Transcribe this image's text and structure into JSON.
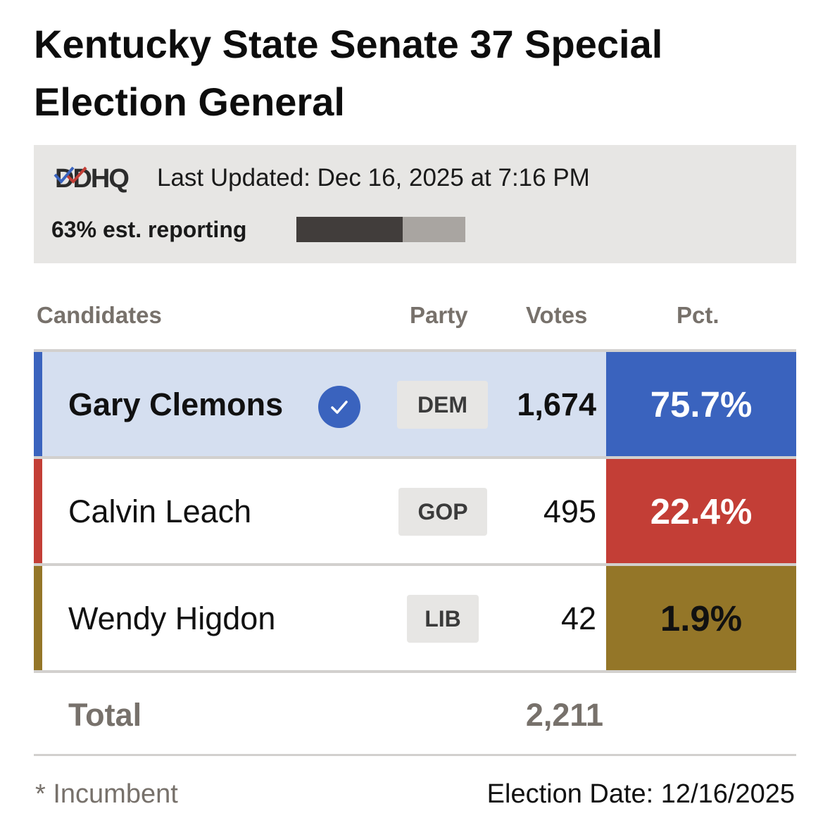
{
  "title": "Kentucky State Senate 37 Special Election General",
  "status": {
    "logo_text": "DDHQ",
    "last_updated": "Last Updated: Dec 16, 2025 at 7:16 PM",
    "reporting_label": "63% est. reporting",
    "reporting_fraction": 0.63
  },
  "columns": {
    "candidates": "Candidates",
    "party": "Party",
    "votes": "Votes",
    "pct": "Pct."
  },
  "candidates": [
    {
      "name": "Gary Clemons",
      "winner": true,
      "party": "DEM",
      "votes": "1,674",
      "pct": "75.7%",
      "accent_color": "#3a63be",
      "pct_bg": "#3a63be",
      "pct_text_color": "#ffffff",
      "row_bg": "#d5dff0"
    },
    {
      "name": "Calvin Leach",
      "winner": false,
      "party": "GOP",
      "votes": "495",
      "pct": "22.4%",
      "accent_color": "#c33e36",
      "pct_bg": "#c33e36",
      "pct_text_color": "#ffffff",
      "row_bg": "#ffffff"
    },
    {
      "name": "Wendy Higdon",
      "winner": false,
      "party": "LIB",
      "votes": "42",
      "pct": "1.9%",
      "accent_color": "#947628",
      "pct_bg": "#947628",
      "pct_text_color": "#111111",
      "row_bg": "#ffffff"
    }
  ],
  "total": {
    "label": "Total",
    "votes": "2,211"
  },
  "footer": {
    "incumbent_note": "* Incumbent",
    "election_date": "Election Date: 12/16/2025"
  },
  "icons": {
    "winner": "check-circle-icon",
    "logo_mark": "double-check-icon"
  }
}
